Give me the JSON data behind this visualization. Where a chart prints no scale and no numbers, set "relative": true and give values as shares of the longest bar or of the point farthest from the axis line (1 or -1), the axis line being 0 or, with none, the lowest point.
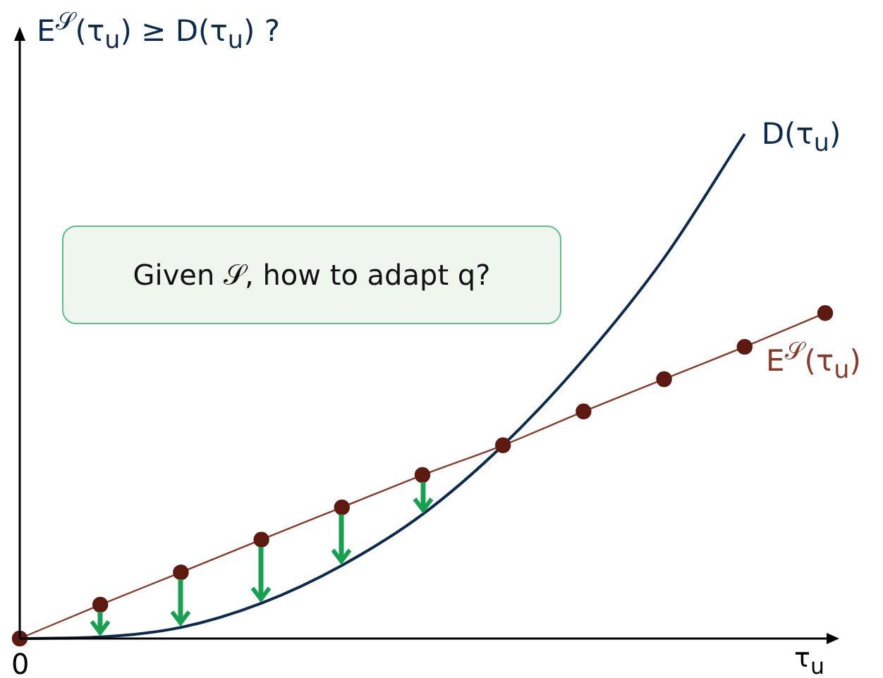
{
  "chart_data": {
    "type": "line",
    "relative": true,
    "ylabel": "E$^{𝒮}$(τ$_{u}$)  ≥  D(τ$_{u}$) ?",
    "xlabel": "τ$_{u}$",
    "categories": [
      null,
      null,
      null,
      null,
      null,
      null,
      null,
      null,
      null,
      null,
      null
    ],
    "series": [
      {
        "name": "D(τ$_{u}$)",
        "color": "#0d2b4c",
        "marker": "none",
        "values": [
          0,
          0.003,
          0.022,
          0.07,
          0.145,
          0.246,
          0.383,
          0.553,
          0.754,
          1,
          null
        ]
      },
      {
        "name": "E$^{𝒮}$(τ$_{u}$)",
        "color": "#8a3a28",
        "marker": "circle",
        "values": [
          0,
          0.067,
          0.131,
          0.196,
          0.26,
          0.324,
          0.383,
          0.45,
          0.514,
          0.578,
          0.645
        ]
      }
    ],
    "annotations": [
      "0",
      "Given 𝒮, how to adapt q?"
    ],
    "legend": false
  }
}
